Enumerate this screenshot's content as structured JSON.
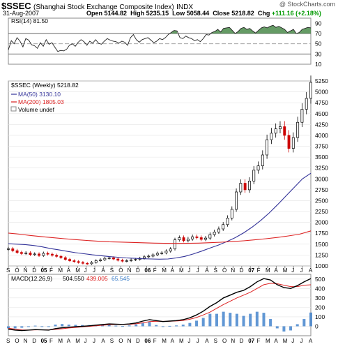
{
  "header": {
    "symbol": "$SSEC",
    "name": "(Shanghai Stock Exchange Composite Index)",
    "exchange": "INDX",
    "credit": "@ StockCharts.com",
    "date": "31-Aug-2007",
    "open_label": "Open",
    "open": "5144.82",
    "high_label": "High",
    "high": "5235.15",
    "low_label": "Low",
    "low": "5058.44",
    "close_label": "Close",
    "close": "5218.82",
    "chg_label": "Chg",
    "chg": "+111.16 (+2.18%)"
  },
  "colors": {
    "price_up": "#000000",
    "price_down": "#cc0000",
    "ma50": "#333399",
    "ma200": "#dd2222",
    "macd": "#000000",
    "signal": "#dd2222",
    "histogram": "#3a7dc9",
    "rsi_fill": "#4a8a4a"
  },
  "chart_data": [
    {
      "type": "line",
      "panel": "RSI",
      "legend": "RSI(14) 81.50",
      "ylim": [
        10,
        100
      ],
      "y_ticks": [
        90,
        70,
        50,
        30,
        10
      ],
      "reference_lines": [
        70,
        50,
        30
      ],
      "series": [
        {
          "name": "RSI(14)",
          "values": [
            38,
            56,
            50,
            62,
            55,
            44,
            60,
            57,
            48,
            46,
            41,
            52,
            45,
            58,
            49,
            52,
            43,
            35,
            37,
            36,
            39,
            47,
            50,
            45,
            53,
            58,
            54,
            47,
            55,
            51,
            58,
            51,
            49,
            55,
            60,
            57,
            55,
            54,
            51,
            55,
            53,
            47,
            62,
            68,
            58,
            53,
            58,
            60,
            62,
            57,
            52,
            55,
            60,
            58,
            62,
            68,
            72,
            76,
            75,
            62,
            60,
            65,
            62,
            60,
            56,
            58,
            54,
            60,
            68,
            67,
            72,
            74,
            78,
            73,
            80,
            81,
            82,
            76,
            70,
            74,
            80,
            82,
            78,
            80,
            75,
            71,
            76,
            81,
            83,
            81,
            84,
            86,
            82,
            84,
            81,
            78,
            72,
            75,
            78,
            70,
            72,
            78,
            80,
            82,
            81
          ]
        }
      ]
    },
    {
      "type": "candlestick",
      "panel": "price",
      "legend": [
        "$SSEC (Weekly) 5218.82",
        "MA(50) 3130.10",
        "MA(200) 1805.03",
        "Volume undef"
      ],
      "ylim": [
        1000,
        5250
      ],
      "y_ticks": [
        5250,
        5000,
        4750,
        4500,
        4250,
        4000,
        3750,
        3500,
        3250,
        3000,
        2750,
        2500,
        2250,
        2000,
        1750,
        1500,
        1250,
        1000
      ],
      "x_tick_labels": [
        "S",
        "O",
        "N",
        "D",
        "05",
        "F",
        "M",
        "A",
        "M",
        "J",
        "J",
        "A",
        "S",
        "O",
        "N",
        "D",
        "06",
        "F",
        "M",
        "A",
        "M",
        "J",
        "J",
        "A",
        "S",
        "O",
        "N",
        "D",
        "07",
        "F",
        "M",
        "A",
        "M",
        "J",
        "J",
        "A"
      ],
      "close": [
        1395,
        1350,
        1310,
        1285,
        1300,
        1260,
        1275,
        1240,
        1290,
        1270,
        1245,
        1220,
        1190,
        1150,
        1120,
        1100,
        1080,
        1060,
        1050,
        1080,
        1120,
        1140,
        1175,
        1185,
        1160,
        1130,
        1110,
        1120,
        1140,
        1150,
        1175,
        1210,
        1225,
        1255,
        1290,
        1300,
        1340,
        1390,
        1600,
        1650,
        1580,
        1620,
        1670,
        1650,
        1610,
        1640,
        1720,
        1780,
        1850,
        1950,
        2100,
        2300,
        2700,
        2900,
        2750,
        2950,
        3200,
        3300,
        3550,
        3900,
        4050,
        4150,
        4200,
        4000,
        3700,
        3950,
        4300,
        4600,
        4850,
        5218
      ],
      "series": [
        {
          "name": "MA(50)",
          "values": [
            1510,
            1500,
            1490,
            1470,
            1440,
            1400,
            1370,
            1335,
            1305,
            1280,
            1255,
            1235,
            1215,
            1200,
            1185,
            1175,
            1165,
            1160,
            1155,
            1160,
            1185,
            1220,
            1275,
            1340,
            1410,
            1480,
            1560,
            1650,
            1760,
            1890,
            2040,
            2210,
            2400,
            2600,
            2800,
            3000,
            3130
          ]
        },
        {
          "name": "MA(200)",
          "values": [
            1755,
            1730,
            1700,
            1672,
            1648,
            1625,
            1605,
            1585,
            1568,
            1555,
            1548,
            1540,
            1532,
            1525,
            1520,
            1518,
            1520,
            1525,
            1534,
            1545,
            1560,
            1578,
            1600,
            1625,
            1655,
            1690,
            1730,
            1805
          ]
        }
      ]
    },
    {
      "type": "line",
      "panel": "MACD",
      "legend": {
        "label": "MACD(12,26,9)",
        "macd": "504.550",
        "signal": "439.005",
        "hist": "65.545"
      },
      "ylim": [
        -100,
        550
      ],
      "y_ticks": [
        500,
        400,
        300,
        200,
        100,
        0
      ],
      "series": [
        {
          "name": "MACD",
          "values": [
            -30,
            -40,
            -45,
            -40,
            -35,
            -38,
            -40,
            -25,
            -15,
            -10,
            -5,
            0,
            5,
            12,
            18,
            25,
            22,
            20,
            25,
            35,
            55,
            70,
            60,
            50,
            55,
            60,
            70,
            90,
            120,
            160,
            210,
            250,
            300,
            330,
            360,
            380,
            420,
            470,
            505,
            490,
            440,
            410,
            400,
            430,
            470,
            505
          ]
        },
        {
          "name": "Signal",
          "values": [
            -20,
            -30,
            -38,
            -40,
            -38,
            -37,
            -38,
            -33,
            -26,
            -18,
            -12,
            -6,
            -1,
            5,
            11,
            17,
            19,
            19,
            21,
            26,
            37,
            50,
            54,
            52,
            53,
            56,
            62,
            74,
            93,
            120,
            150,
            190,
            230,
            265,
            300,
            330,
            360,
            400,
            440,
            455,
            450,
            435,
            420,
            420,
            435,
            439
          ]
        }
      ]
    }
  ],
  "macd_x_tick_labels": [
    "S",
    "O",
    "N",
    "D",
    "05",
    "F",
    "M",
    "A",
    "M",
    "J",
    "J",
    "A",
    "S",
    "O",
    "N",
    "D",
    "06",
    "F",
    "M",
    "A",
    "M",
    "J",
    "J",
    "A",
    "S",
    "O",
    "N",
    "D",
    "07",
    "F",
    "M",
    "A",
    "M",
    "J",
    "J",
    "A"
  ]
}
